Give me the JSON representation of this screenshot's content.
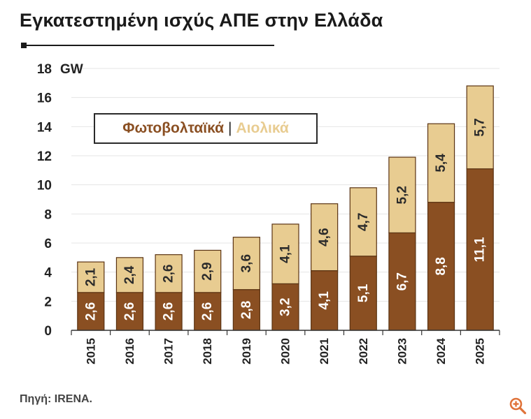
{
  "header": {
    "title": "Εγκατεστημένη ισχύς ΑΠΕ στην Ελλάδα"
  },
  "legend": {
    "separator": "|"
  },
  "footer": {
    "source": "Πηγή: IRENA."
  },
  "colors": {
    "pv": "#8a4f22",
    "wind": "#e8cc91",
    "pv_text": "#ffffff",
    "wind_text": "#2b2b2b"
  },
  "icons": {
    "zoom": "zoom-in-icon"
  },
  "chart_data": {
    "type": "bar",
    "stacked": true,
    "title": "Εγκατεστημένη ισχύς ΑΠΕ στην Ελλάδα",
    "ylabel": "GW",
    "xlabel": "",
    "ylim": [
      0,
      18
    ],
    "yticks": [
      "0",
      "2",
      "4",
      "6",
      "8",
      "10",
      "12",
      "14",
      "16",
      "18"
    ],
    "grid": true,
    "legend_position": "top-left",
    "categories": [
      "2015",
      "2016",
      "2017",
      "2018",
      "2019",
      "2020",
      "2021",
      "2022",
      "2023",
      "2024",
      "2025"
    ],
    "series": [
      {
        "name": "Φωτοβολταϊκά",
        "values": [
          2.6,
          2.6,
          2.6,
          2.6,
          2.8,
          3.2,
          4.1,
          5.1,
          6.7,
          8.8,
          11.1
        ],
        "labels": [
          "2,6",
          "2,6",
          "2,6",
          "2,6",
          "2,8",
          "3,2",
          "4,1",
          "5,1",
          "6,7",
          "8,8",
          "11,1"
        ]
      },
      {
        "name": "Αιολικά",
        "values": [
          2.1,
          2.4,
          2.6,
          2.9,
          3.6,
          4.1,
          4.6,
          4.7,
          5.2,
          5.4,
          5.7
        ],
        "labels": [
          "2,1",
          "2,4",
          "2,6",
          "2,9",
          "3,6",
          "4,1",
          "4,6",
          "4,7",
          "5,2",
          "5,4",
          "5,7"
        ]
      }
    ]
  }
}
